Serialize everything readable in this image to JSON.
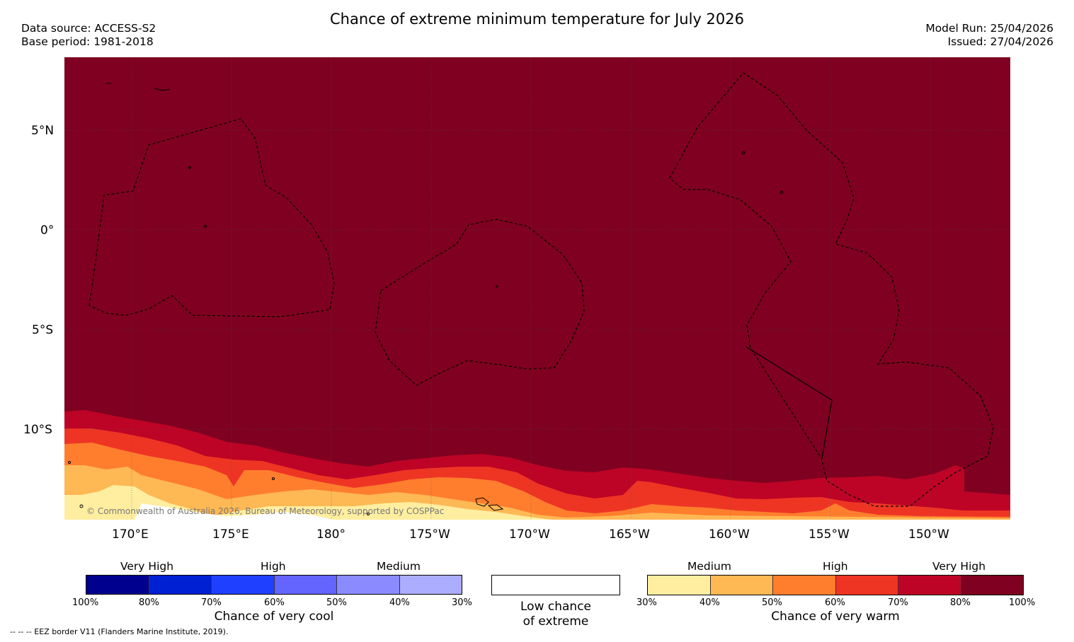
{
  "header": {
    "title": "Chance of extreme minimum temperature for July 2026",
    "data_source": "Data source: ACCESS-S2",
    "base_period": "Base period: 1981-2018",
    "model_run": "Model Run: 25/04/2026",
    "issued": "Issued: 27/04/2026"
  },
  "map": {
    "copyright": "© Commonwealth of Australia 2026, Bureau of Meteorology, supported by COSPPac",
    "lat_labels": [
      "5°N",
      "0°",
      "5°S",
      "10°S"
    ],
    "lon_labels": [
      "170°E",
      "175°E",
      "180°",
      "175°W",
      "170°W",
      "165°W",
      "160°W",
      "155°W",
      "150°W"
    ],
    "colors": {
      "very_high_warm": "#7f0020",
      "high_warm_80": "#bd0426",
      "high_warm_70": "#ee3524",
      "medium_warm_60": "#ff7e2e",
      "medium_warm_50": "#feb854",
      "low_warm_40": "#ffeea0"
    }
  },
  "legend": {
    "cool": {
      "headers": [
        "Very High",
        "High",
        "Medium"
      ],
      "ticks": [
        "100%",
        "80%",
        "70%",
        "60%",
        "50%",
        "40%",
        "30%"
      ],
      "colors": [
        "#00008f",
        "#0020d4",
        "#2040ff",
        "#6464ff",
        "#8b8bff",
        "#adadff"
      ],
      "title": "Chance of very cool"
    },
    "neutral": {
      "line1": "Low chance",
      "line2": "of extreme"
    },
    "warm": {
      "headers": [
        "Medium",
        "High",
        "Very High"
      ],
      "ticks": [
        "30%",
        "40%",
        "50%",
        "60%",
        "70%",
        "80%",
        "100%"
      ],
      "colors": [
        "#ffeea0",
        "#feb854",
        "#ff7e2e",
        "#ee3524",
        "#bd0426",
        "#7f0020"
      ],
      "title": "Chance of very warm"
    }
  },
  "footer": "--  --  -- EEZ border V11 (Flanders Marine Institute, 2019)."
}
